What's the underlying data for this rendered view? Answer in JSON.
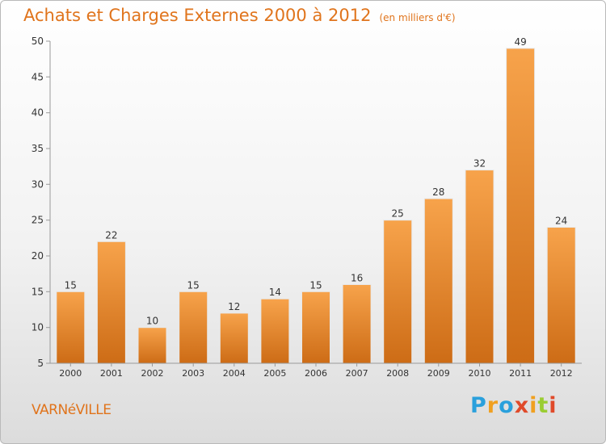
{
  "header": {
    "title": "Achats et Charges Externes 2000 à 2012",
    "subtitle": "(en milliers d'€)"
  },
  "footer": {
    "place": "VARNéVILLE",
    "logo": {
      "letters": [
        "P",
        "r",
        "o",
        "x",
        "i",
        "t",
        "i"
      ],
      "colors": [
        "#2aa0dc",
        "#f0a020",
        "#2aa0dc",
        "#e04a2a",
        "#f0a020",
        "#9acd32",
        "#e04a2a"
      ]
    }
  },
  "chart_data": {
    "type": "bar",
    "categories": [
      "2000",
      "2001",
      "2002",
      "2003",
      "2004",
      "2005",
      "2006",
      "2007",
      "2008",
      "2009",
      "2010",
      "2011",
      "2012"
    ],
    "values": [
      15,
      22,
      10,
      15,
      12,
      14,
      15,
      16,
      25,
      28,
      32,
      49,
      24
    ],
    "data_labels": [
      "15",
      "22",
      "10",
      "15",
      "12",
      "14",
      "15",
      "16",
      "25",
      "28",
      "32",
      "49",
      "24"
    ],
    "yticks": [
      5,
      10,
      15,
      20,
      25,
      30,
      35,
      40,
      45,
      50
    ],
    "ylim": [
      5,
      50
    ],
    "grid": false,
    "colors": {
      "bar_light": "#f7a34b",
      "bar_dark": "#cd6c16",
      "text": "#333333",
      "axis": "#999999"
    }
  }
}
